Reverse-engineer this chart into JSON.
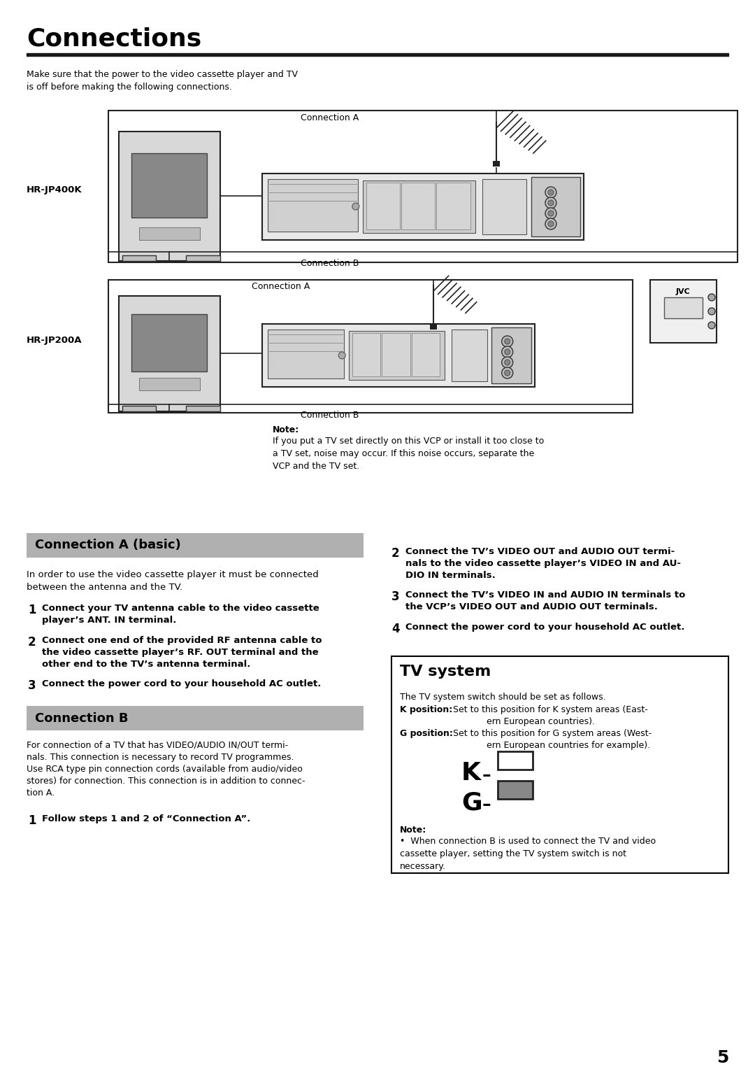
{
  "title": "Connections",
  "page_number": "5",
  "bg_color": "#ffffff",
  "intro_text": "Make sure that the power to the video cassette player and TV\nis off before making the following connections.",
  "model1_label": "HR-JP400K",
  "model2_label": "HR-JP200A",
  "conn_a_label": "Connection A",
  "conn_b_label": "Connection B",
  "note_title": "Note:",
  "note_text": "If you put a TV set directly on this VCP or install it too close to\na TV set, noise may occur. If this noise occurs, separate the\nVCP and the TV set.",
  "section1_title": "Connection A (basic)",
  "section1_intro": "In order to use the video cassette player it must be connected\nbetween the antenna and the TV.",
  "section1_step1": "Connect your TV antenna cable to the video cassette\nplayer’s ANT. IN terminal.",
  "section1_step2": "Connect one end of the provided RF antenna cable to\nthe video cassette player’s RF. OUT terminal and the\nother end to the TV’s antenna terminal.",
  "section1_step3": "Connect the power cord to your household AC outlet.",
  "section2_title": "Connection B",
  "section2_intro": "For connection of a TV that has VIDEO/AUDIO IN/OUT termi-\nnals. This connection is necessary to record TV programmes.\nUse RCA type pin connection cords (available from audio/video\nstores) for connection. This connection is in addition to connec-\ntion A.",
  "section2_step1": "Follow steps 1 and 2 of “Connection A”.",
  "rcol_step2": "Connect the TV’s VIDEO OUT and AUDIO OUT termi-\nnals to the video cassette player’s VIDEO IN and AU-\nDIO IN terminals.",
  "rcol_step3": "Connect the TV’s VIDEO IN and AUDIO IN terminals to\nthe VCP’s VIDEO OUT and AUDIO OUT terminals.",
  "rcol_step4": "Connect the power cord to your household AC outlet.",
  "tv_system_title": "TV system",
  "tv_system_intro": "The TV system switch should be set as follows.",
  "tv_system_k_bold": "K position:",
  "tv_system_k_rest": "  Set to this position for K system areas (East-\n              ern European countries).",
  "tv_system_g_bold": "G position:",
  "tv_system_g_rest": "  Set to this position for G system areas (West-\n              ern European countries for example).",
  "tv_note_title": "Note:",
  "tv_note_bullet": "When connection B is used to connect the TV and video\ncassette player, setting the TV system switch is not\nnecessary.",
  "section_header_bg": "#b0b0b0",
  "tv_box_border": "#000000"
}
